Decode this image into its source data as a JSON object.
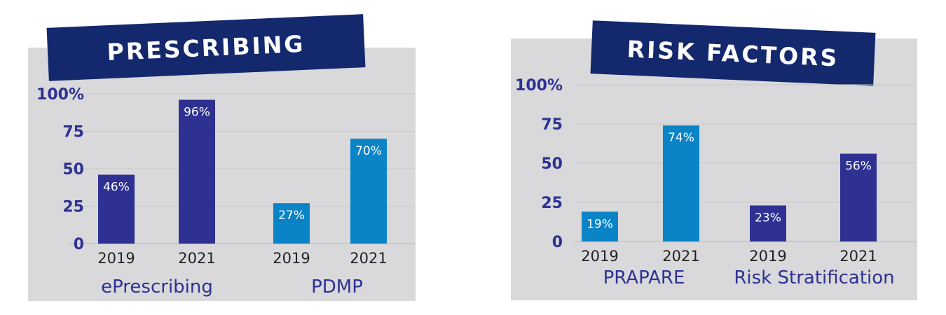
{
  "colors": {
    "panel": "#d9d9db",
    "banner": "#14286e",
    "axis_text": "#2e3192",
    "dark_bar": "#2e3192",
    "light_bar": "#0a84c6"
  },
  "chart_data": [
    {
      "type": "bar",
      "title": "PRESCRIBING",
      "y_ticks": [
        "0",
        "25",
        "50",
        "75",
        "100%"
      ],
      "ylim": [
        0,
        100
      ],
      "grid": true,
      "categories": [
        "2019",
        "2021",
        "2019",
        "2021"
      ],
      "groups": [
        "ePrescribing",
        "PDMP"
      ],
      "values": [
        46,
        96,
        27,
        70
      ],
      "value_labels": [
        "46%",
        "96%",
        "27%",
        "70%"
      ],
      "bar_colors": [
        "dark",
        "dark",
        "light",
        "light"
      ]
    },
    {
      "type": "bar",
      "title": "RISK FACTORS",
      "y_ticks": [
        "0",
        "25",
        "50",
        "75",
        "100%"
      ],
      "ylim": [
        0,
        100
      ],
      "grid": true,
      "categories": [
        "2019",
        "2021",
        "2019",
        "2021"
      ],
      "groups": [
        "PRAPARE",
        "Risk Stratification"
      ],
      "values": [
        19,
        74,
        23,
        56
      ],
      "value_labels": [
        "19%",
        "74%",
        "23%",
        "56%"
      ],
      "bar_colors": [
        "light",
        "light",
        "dark",
        "dark"
      ]
    }
  ]
}
